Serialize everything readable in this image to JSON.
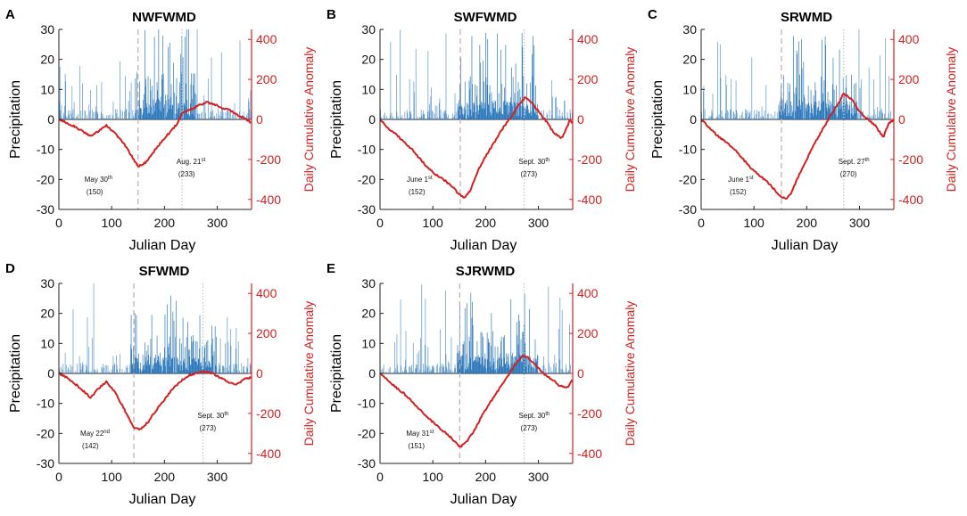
{
  "figure": {
    "x_axis_label": "Julian Day",
    "y_left_label": "Precipitation",
    "y_right_label": "Daily Cumulative Anomaly"
  },
  "colors": {
    "bars": "#3f86c4",
    "bars_dense": "#2573b8",
    "cumulative_line": "#d42020",
    "right_axis": "#d42020",
    "dashed_marker": "#c9a8a8",
    "dotted_marker": "#b9c6cc"
  },
  "chart_data": [
    {
      "panel_letter": "A",
      "title": "NWFWMD",
      "type": "bar+line",
      "xlabel": "Julian Day",
      "ylabel_left": "Precipitation",
      "ylabel_right": "Daily Cumulative Anomaly",
      "xlim": [
        0,
        365
      ],
      "ylim_left": [
        -30,
        30
      ],
      "ylim_right": [
        -450,
        450
      ],
      "x_ticks": [
        "0",
        "100",
        "200",
        "300"
      ],
      "y_left_ticks": [
        "30",
        "20",
        "10",
        "0",
        "-10",
        "-20",
        "-30"
      ],
      "y_right_ticks": [
        "400",
        "200",
        "0",
        "-200",
        "-400"
      ],
      "onset": {
        "day": 150,
        "label": "May 30",
        "ordinal": "th",
        "day_label": "(150)"
      },
      "retreat": {
        "day": 233,
        "label": "Aug. 21",
        "ordinal": "st",
        "day_label": "(233)"
      },
      "wet_season_intensity": 0.75,
      "cumulative_anomaly": {
        "days": [
          0,
          15,
          30,
          45,
          60,
          75,
          90,
          105,
          120,
          135,
          150,
          165,
          180,
          195,
          210,
          225,
          233,
          250,
          265,
          280,
          295,
          310,
          325,
          340,
          355,
          365
        ],
        "values": [
          0,
          -18,
          -35,
          -60,
          -85,
          -58,
          -30,
          -65,
          -110,
          -170,
          -235,
          -215,
          -160,
          -110,
          -65,
          -20,
          30,
          50,
          70,
          85,
          75,
          55,
          45,
          20,
          0,
          -20
        ]
      }
    },
    {
      "panel_letter": "B",
      "title": "SWFWMD",
      "type": "bar+line",
      "xlabel": "Julian Day",
      "ylabel_left": "Precipitation",
      "ylabel_right": "Daily Cumulative Anomaly",
      "xlim": [
        0,
        365
      ],
      "ylim_left": [
        -30,
        30
      ],
      "ylim_right": [
        -450,
        450
      ],
      "x_ticks": [
        "0",
        "100",
        "200",
        "300"
      ],
      "y_left_ticks": [
        "30",
        "20",
        "10",
        "0",
        "-10",
        "-20",
        "-30"
      ],
      "y_right_ticks": [
        "400",
        "200",
        "0",
        "-200",
        "-400"
      ],
      "onset": {
        "day": 152,
        "label": "June 1",
        "ordinal": "st",
        "day_label": "(152)"
      },
      "retreat": {
        "day": 273,
        "label": "Sept. 30",
        "ordinal": "th",
        "day_label": "(273)"
      },
      "wet_season_intensity": 0.6,
      "cumulative_anomaly": {
        "days": [
          0,
          15,
          30,
          45,
          60,
          75,
          90,
          105,
          120,
          135,
          150,
          160,
          170,
          185,
          200,
          215,
          230,
          245,
          260,
          275,
          285,
          300,
          315,
          330,
          345,
          360,
          365
        ],
        "values": [
          0,
          -45,
          -75,
          -110,
          -150,
          -195,
          -240,
          -275,
          -300,
          -330,
          -375,
          -390,
          -360,
          -260,
          -185,
          -120,
          -55,
          0,
          60,
          110,
          90,
          40,
          -10,
          -70,
          -95,
          0,
          -20
        ]
      }
    },
    {
      "panel_letter": "C",
      "title": "SRWMD",
      "type": "bar+line",
      "xlabel": "Julian Day",
      "ylabel_left": "Precipitation",
      "ylabel_right": "Daily Cumulative Anomaly",
      "xlim": [
        0,
        365
      ],
      "ylim_left": [
        -30,
        30
      ],
      "ylim_right": [
        -450,
        450
      ],
      "x_ticks": [
        "0",
        "100",
        "200",
        "300"
      ],
      "y_left_ticks": [
        "30",
        "20",
        "10",
        "0",
        "-10",
        "-20",
        "-30"
      ],
      "y_right_ticks": [
        "400",
        "200",
        "0",
        "-200",
        "-400"
      ],
      "onset": {
        "day": 152,
        "label": "June 1",
        "ordinal": "st",
        "day_label": "(152)"
      },
      "retreat": {
        "day": 270,
        "label": "Sept. 27",
        "ordinal": "th",
        "day_label": "(270)"
      },
      "wet_season_intensity": 0.65,
      "cumulative_anomaly": {
        "days": [
          0,
          15,
          30,
          45,
          60,
          75,
          90,
          105,
          120,
          135,
          150,
          160,
          170,
          185,
          200,
          215,
          230,
          245,
          260,
          270,
          285,
          300,
          315,
          330,
          345,
          355,
          365
        ],
        "values": [
          0,
          -40,
          -80,
          -110,
          -140,
          -185,
          -230,
          -270,
          -300,
          -340,
          -385,
          -400,
          -370,
          -280,
          -200,
          -120,
          -50,
          20,
          80,
          130,
          100,
          40,
          0,
          -30,
          -90,
          -20,
          0
        ]
      }
    },
    {
      "panel_letter": "D",
      "title": "SFWMD",
      "type": "bar+line",
      "xlabel": "Julian Day",
      "ylabel_left": "Precipitation",
      "ylabel_right": "Daily Cumulative Anomaly",
      "xlim": [
        0,
        365
      ],
      "ylim_left": [
        -30,
        30
      ],
      "ylim_right": [
        -450,
        450
      ],
      "x_ticks": [
        "0",
        "100",
        "200",
        "300"
      ],
      "y_left_ticks": [
        "30",
        "20",
        "10",
        "0",
        "-10",
        "-20",
        "-30"
      ],
      "y_right_ticks": [
        "400",
        "200",
        "0",
        "-200",
        "-400"
      ],
      "onset": {
        "day": 142,
        "label": "May 22",
        "ordinal": "nd",
        "day_label": "(142)"
      },
      "retreat": {
        "day": 273,
        "label": "Sept. 30",
        "ordinal": "th",
        "day_label": "(273)"
      },
      "wet_season_intensity": 0.45,
      "cumulative_anomaly": {
        "days": [
          0,
          15,
          30,
          45,
          60,
          75,
          90,
          105,
          120,
          135,
          142,
          155,
          170,
          185,
          200,
          215,
          230,
          245,
          260,
          275,
          290,
          305,
          320,
          335,
          350,
          365
        ],
        "values": [
          0,
          -20,
          -50,
          -85,
          -120,
          -75,
          -40,
          -90,
          -160,
          -235,
          -270,
          -280,
          -240,
          -180,
          -130,
          -80,
          -40,
          -10,
          0,
          10,
          0,
          -20,
          -40,
          -60,
          -30,
          -20
        ]
      }
    },
    {
      "panel_letter": "E",
      "title": "SJRWMD",
      "type": "bar+line",
      "xlabel": "Julian Day",
      "ylabel_left": "Precipitation",
      "ylabel_right": "Daily Cumulative Anomaly",
      "xlim": [
        0,
        365
      ],
      "ylim_left": [
        -30,
        30
      ],
      "ylim_right": [
        -450,
        450
      ],
      "x_ticks": [
        "0",
        "100",
        "200",
        "300"
      ],
      "y_left_ticks": [
        "30",
        "20",
        "10",
        "0",
        "-10",
        "-20",
        "-30"
      ],
      "y_right_ticks": [
        "400",
        "200",
        "0",
        "-200",
        "-400"
      ],
      "onset": {
        "day": 151,
        "label": "May 31",
        "ordinal": "st",
        "day_label": "(151)"
      },
      "retreat": {
        "day": 273,
        "label": "Sept. 30",
        "ordinal": "th",
        "day_label": "(273)"
      },
      "wet_season_intensity": 0.55,
      "cumulative_anomaly": {
        "days": [
          0,
          15,
          30,
          45,
          60,
          75,
          90,
          105,
          120,
          135,
          151,
          165,
          180,
          195,
          210,
          225,
          240,
          255,
          270,
          280,
          295,
          310,
          325,
          340,
          355,
          365
        ],
        "values": [
          0,
          -35,
          -70,
          -100,
          -140,
          -180,
          -220,
          -255,
          -290,
          -320,
          -370,
          -340,
          -280,
          -200,
          -140,
          -80,
          -20,
          40,
          90,
          80,
          40,
          0,
          -30,
          -60,
          -70,
          -30
        ]
      }
    }
  ]
}
